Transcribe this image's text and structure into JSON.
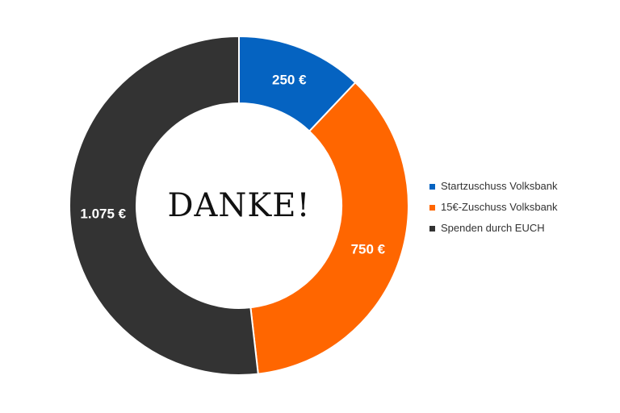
{
  "chart_data": {
    "type": "pie",
    "subtype": "donut",
    "title": "",
    "center_text": "DANKE!",
    "legend_position": "right",
    "series": [
      {
        "name": "Startzuschuss Volksbank",
        "value": 250,
        "label": "250 €",
        "color": "#0563C1"
      },
      {
        "name": "15€-Zuschuss Volksbank",
        "value": 750,
        "label": "750 €",
        "color": "#FF6600"
      },
      {
        "name": "Spenden durch EUCH",
        "value": 1075,
        "label": "1.075 €",
        "color": "#333333"
      }
    ]
  }
}
